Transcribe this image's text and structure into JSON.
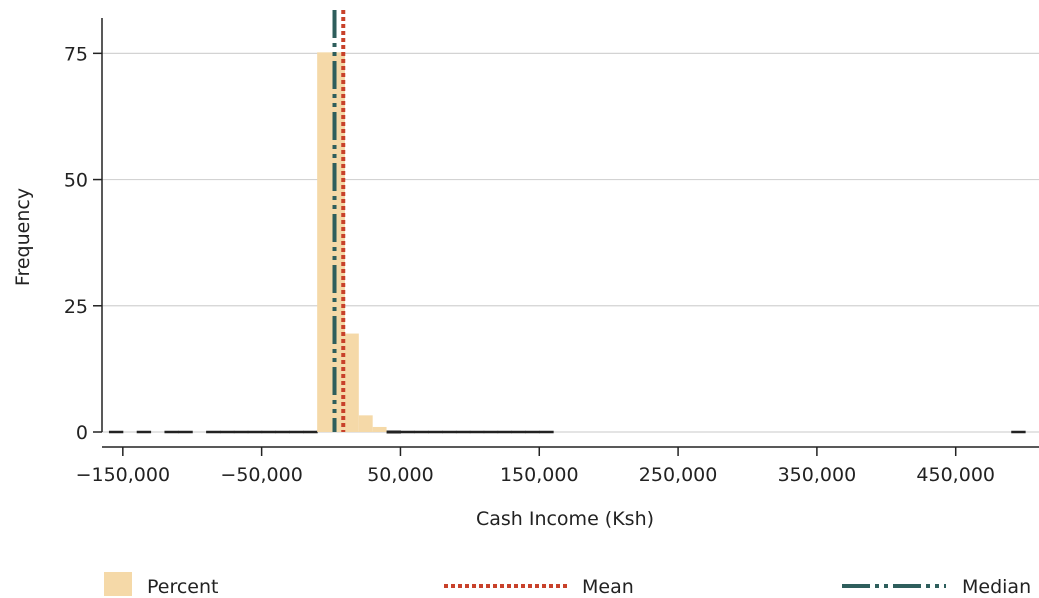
{
  "chart_data": {
    "type": "bar",
    "title": "",
    "xlabel": "Cash Income (Ksh)",
    "ylabel": "Frequency",
    "xlim": [
      -165000,
      510000
    ],
    "ylim": [
      0,
      82
    ],
    "x_ticks": [
      {
        "value": -150000,
        "label": "−150,000"
      },
      {
        "value": -50000,
        "label": "−50,000"
      },
      {
        "value": 50000,
        "label": "50,000"
      },
      {
        "value": 150000,
        "label": "150,000"
      },
      {
        "value": 250000,
        "label": "250,000"
      },
      {
        "value": 350000,
        "label": "350,000"
      },
      {
        "value": 450000,
        "label": "450,000"
      }
    ],
    "y_ticks": [
      {
        "value": 0,
        "label": "0"
      },
      {
        "value": 25,
        "label": "25"
      },
      {
        "value": 50,
        "label": "50"
      },
      {
        "value": 75,
        "label": "75"
      }
    ],
    "grid": true,
    "series": [
      {
        "name": "Percent",
        "kind": "histogram",
        "color": "#f5d9a8",
        "bins": [
          {
            "x0": -160000,
            "x1": -150000,
            "value": 0.1
          },
          {
            "x0": -140000,
            "x1": -130000,
            "value": 0.1
          },
          {
            "x0": -120000,
            "x1": -110000,
            "value": 0.1
          },
          {
            "x0": -110000,
            "x1": -100000,
            "value": 0.1
          },
          {
            "x0": -90000,
            "x1": -80000,
            "value": 0.1
          },
          {
            "x0": -80000,
            "x1": -70000,
            "value": 0.1
          },
          {
            "x0": -70000,
            "x1": -60000,
            "value": 0.1
          },
          {
            "x0": -60000,
            "x1": -50000,
            "value": 0.1
          },
          {
            "x0": -50000,
            "x1": -40000,
            "value": 0.1
          },
          {
            "x0": -40000,
            "x1": -30000,
            "value": 0.1
          },
          {
            "x0": -30000,
            "x1": -20000,
            "value": 0.2
          },
          {
            "x0": -20000,
            "x1": -10000,
            "value": 0.5
          },
          {
            "x0": -10000,
            "x1": 0,
            "value": 75.2
          },
          {
            "x0": 0,
            "x1": 10000,
            "value": 75.2
          },
          {
            "x0": 10000,
            "x1": 20000,
            "value": 19.5
          },
          {
            "x0": 20000,
            "x1": 30000,
            "value": 3.3
          },
          {
            "x0": 30000,
            "x1": 40000,
            "value": 1.0
          },
          {
            "x0": 40000,
            "x1": 50000,
            "value": 0.6
          },
          {
            "x0": 50000,
            "x1": 60000,
            "value": 0.5
          },
          {
            "x0": 60000,
            "x1": 70000,
            "value": 0.4
          },
          {
            "x0": 70000,
            "x1": 80000,
            "value": 0.3
          },
          {
            "x0": 80000,
            "x1": 90000,
            "value": 0.2
          },
          {
            "x0": 90000,
            "x1": 100000,
            "value": 0.2
          },
          {
            "x0": 100000,
            "x1": 110000,
            "value": 0.1
          },
          {
            "x0": 110000,
            "x1": 120000,
            "value": 0.1
          },
          {
            "x0": 120000,
            "x1": 130000,
            "value": 0.1
          },
          {
            "x0": 130000,
            "x1": 140000,
            "value": 0.1
          },
          {
            "x0": 140000,
            "x1": 150000,
            "value": 0.1
          },
          {
            "x0": 150000,
            "x1": 160000,
            "value": 0.1
          },
          {
            "x0": 490000,
            "x1": 500000,
            "value": 0.1
          }
        ]
      },
      {
        "name": "Mean",
        "kind": "vline",
        "color": "#c8412a",
        "x": 8800
      },
      {
        "name": "Median",
        "kind": "vline",
        "color": "#2e5e5c",
        "x": 2500
      }
    ],
    "legend": {
      "placement": "bottom",
      "items": [
        {
          "label": "Percent",
          "swatch": "box",
          "color": "#f5d9a8"
        },
        {
          "label": "Mean",
          "swatch": "dotted-line",
          "color": "#c8412a"
        },
        {
          "label": "Median",
          "swatch": "dash-dot-line",
          "color": "#2e5e5c"
        }
      ]
    }
  }
}
